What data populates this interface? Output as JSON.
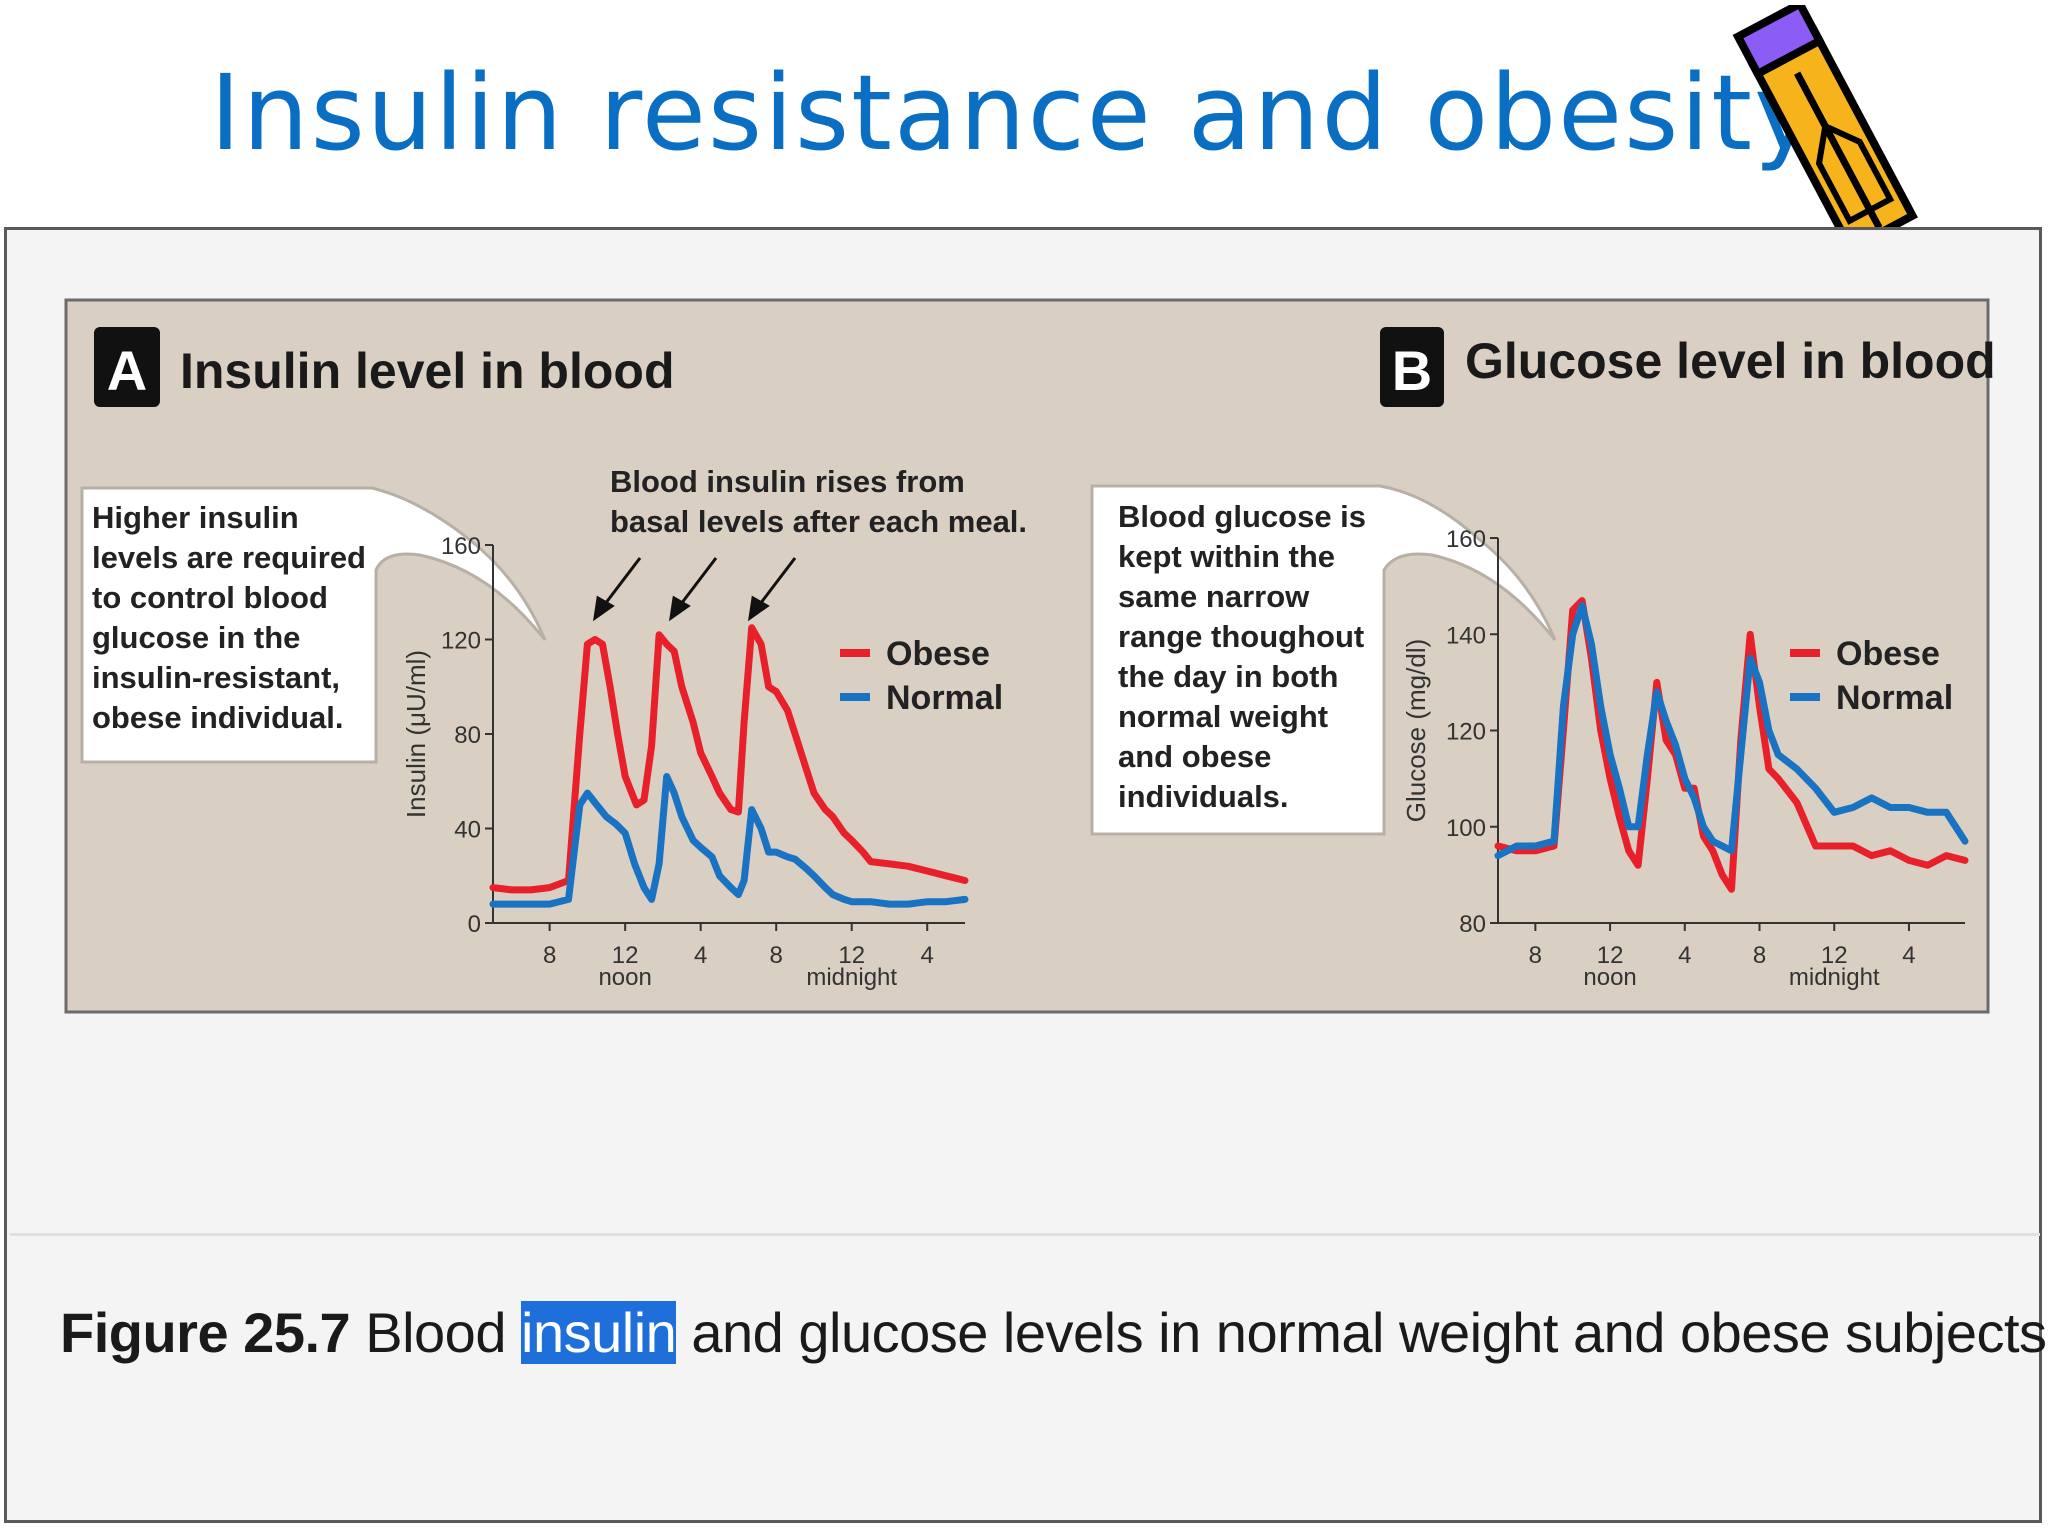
{
  "title": "Insulin resistance and obesity",
  "caption": {
    "figure_label": "Figure 25.7",
    "before": "Blood",
    "highlight": "insulin",
    "after": "and glucose levels in normal weight and obese subjects."
  },
  "colors": {
    "title": "#0a6fc2",
    "panel_bg": "#d9cfc3",
    "obese": "#e8202a",
    "normal": "#1a73c2",
    "highlight": "#1e6fd9"
  },
  "chart_data": [
    {
      "type": "line",
      "panel_letter": "A",
      "title": "Insulin level in blood",
      "ylabel": "Insulin (μU/ml)",
      "ylim": [
        0,
        160
      ],
      "yticks": [
        0,
        40,
        80,
        120,
        160
      ],
      "xlim": [
        5,
        30
      ],
      "xticks": [
        {
          "x": 8,
          "label": "8"
        },
        {
          "x": 12,
          "label": "12"
        },
        {
          "x": 16,
          "label": "4"
        },
        {
          "x": 20,
          "label": "8"
        },
        {
          "x": 24,
          "label": "12"
        },
        {
          "x": 28,
          "label": "4"
        }
      ],
      "xsublabels": [
        {
          "x": 12,
          "label": "noon"
        },
        {
          "x": 24,
          "label": "midnight"
        }
      ],
      "legend": [
        "Obese",
        "Normal"
      ],
      "legend_position": "right",
      "callout": "Higher insulin levels are required to control blood glucose in the insulin-resistant, obese individual.",
      "top_note": "Blood insulin rises from basal levels after each meal.",
      "series": [
        {
          "name": "Obese",
          "x": [
            5,
            6,
            7,
            8,
            9,
            9.6,
            10,
            10.4,
            10.8,
            11.2,
            11.6,
            12,
            12.6,
            13,
            13.4,
            13.8,
            14.2,
            14.6,
            15,
            15.6,
            16,
            16.6,
            17,
            17.6,
            18,
            18.3,
            18.7,
            19.2,
            19.6,
            20,
            20.6,
            21,
            21.6,
            22,
            22.6,
            23,
            23.6,
            24,
            24.6,
            25,
            26,
            27,
            28,
            29,
            30
          ],
          "y": [
            15,
            14,
            14,
            15,
            18,
            80,
            118,
            120,
            118,
            100,
            80,
            62,
            50,
            52,
            75,
            122,
            118,
            115,
            100,
            85,
            72,
            62,
            55,
            48,
            47,
            85,
            125,
            118,
            100,
            98,
            90,
            80,
            65,
            55,
            48,
            45,
            38,
            35,
            30,
            26,
            25,
            24,
            22,
            20,
            18
          ]
        },
        {
          "name": "Normal",
          "x": [
            5,
            6,
            7,
            8,
            9,
            9.6,
            10,
            10.5,
            11,
            11.5,
            12,
            12.5,
            13,
            13.4,
            13.8,
            14.2,
            14.6,
            15,
            15.6,
            16,
            16.6,
            17,
            17.6,
            18,
            18.3,
            18.7,
            19.2,
            19.6,
            20,
            20.6,
            21,
            21.6,
            22,
            22.6,
            23,
            23.6,
            24,
            25,
            26,
            27,
            28,
            29,
            30
          ],
          "y": [
            8,
            8,
            8,
            8,
            10,
            50,
            55,
            50,
            45,
            42,
            38,
            25,
            15,
            10,
            25,
            62,
            55,
            45,
            35,
            32,
            28,
            20,
            15,
            12,
            18,
            48,
            40,
            30,
            30,
            28,
            27,
            23,
            20,
            15,
            12,
            10,
            9,
            9,
            8,
            8,
            9,
            9,
            10
          ]
        }
      ]
    },
    {
      "type": "line",
      "panel_letter": "B",
      "title": "Glucose level in blood",
      "ylabel": "Glucose (mg/dl)",
      "ylim": [
        80,
        160
      ],
      "yticks": [
        80,
        100,
        120,
        140,
        160
      ],
      "xlim": [
        5,
        30
      ],
      "xticks": [
        {
          "x": 7,
          "label": "8"
        },
        {
          "x": 11,
          "label": "12"
        },
        {
          "x": 15,
          "label": "4"
        },
        {
          "x": 19,
          "label": "8"
        },
        {
          "x": 23,
          "label": "12"
        },
        {
          "x": 27,
          "label": "4"
        }
      ],
      "xsublabels": [
        {
          "x": 11,
          "label": "noon"
        },
        {
          "x": 23,
          "label": "midnight"
        }
      ],
      "legend": [
        "Obese",
        "Normal"
      ],
      "legend_position": "right",
      "callout": "Blood glucose is kept within the same narrow range thoughout the day in both normal weight and obese individuals.",
      "series": [
        {
          "name": "Obese",
          "x": [
            5,
            6,
            7,
            8,
            8.5,
            9,
            9.5,
            10,
            10.5,
            11,
            11.5,
            12,
            12.5,
            13,
            13.5,
            14,
            14.5,
            15,
            15.5,
            16,
            16.5,
            17,
            17.5,
            18,
            18.5,
            19,
            19.5,
            20,
            21,
            22,
            23,
            24,
            25,
            26,
            27,
            28,
            29,
            30
          ],
          "y": [
            96,
            95,
            95,
            96,
            120,
            145,
            147,
            135,
            120,
            110,
            102,
            95,
            92,
            110,
            130,
            118,
            115,
            108,
            108,
            98,
            95,
            90,
            87,
            118,
            140,
            125,
            112,
            110,
            105,
            96,
            96,
            96,
            94,
            95,
            93,
            92,
            94,
            93
          ]
        },
        {
          "name": "Normal",
          "x": [
            5,
            6,
            7,
            8,
            8.5,
            9,
            9.5,
            10,
            10.5,
            11,
            11.5,
            12,
            12.5,
            13,
            13.5,
            14,
            14.5,
            15,
            15.5,
            16,
            16.5,
            17,
            17.5,
            18,
            18.5,
            19,
            19.5,
            20,
            21,
            22,
            23,
            24,
            25,
            26,
            27,
            28,
            29,
            30
          ],
          "y": [
            94,
            96,
            96,
            97,
            125,
            140,
            146,
            138,
            125,
            115,
            108,
            100,
            100,
            115,
            128,
            122,
            117,
            110,
            106,
            100,
            97,
            96,
            95,
            115,
            135,
            130,
            120,
            115,
            112,
            108,
            103,
            104,
            106,
            104,
            104,
            103,
            103,
            97
          ]
        }
      ]
    }
  ]
}
